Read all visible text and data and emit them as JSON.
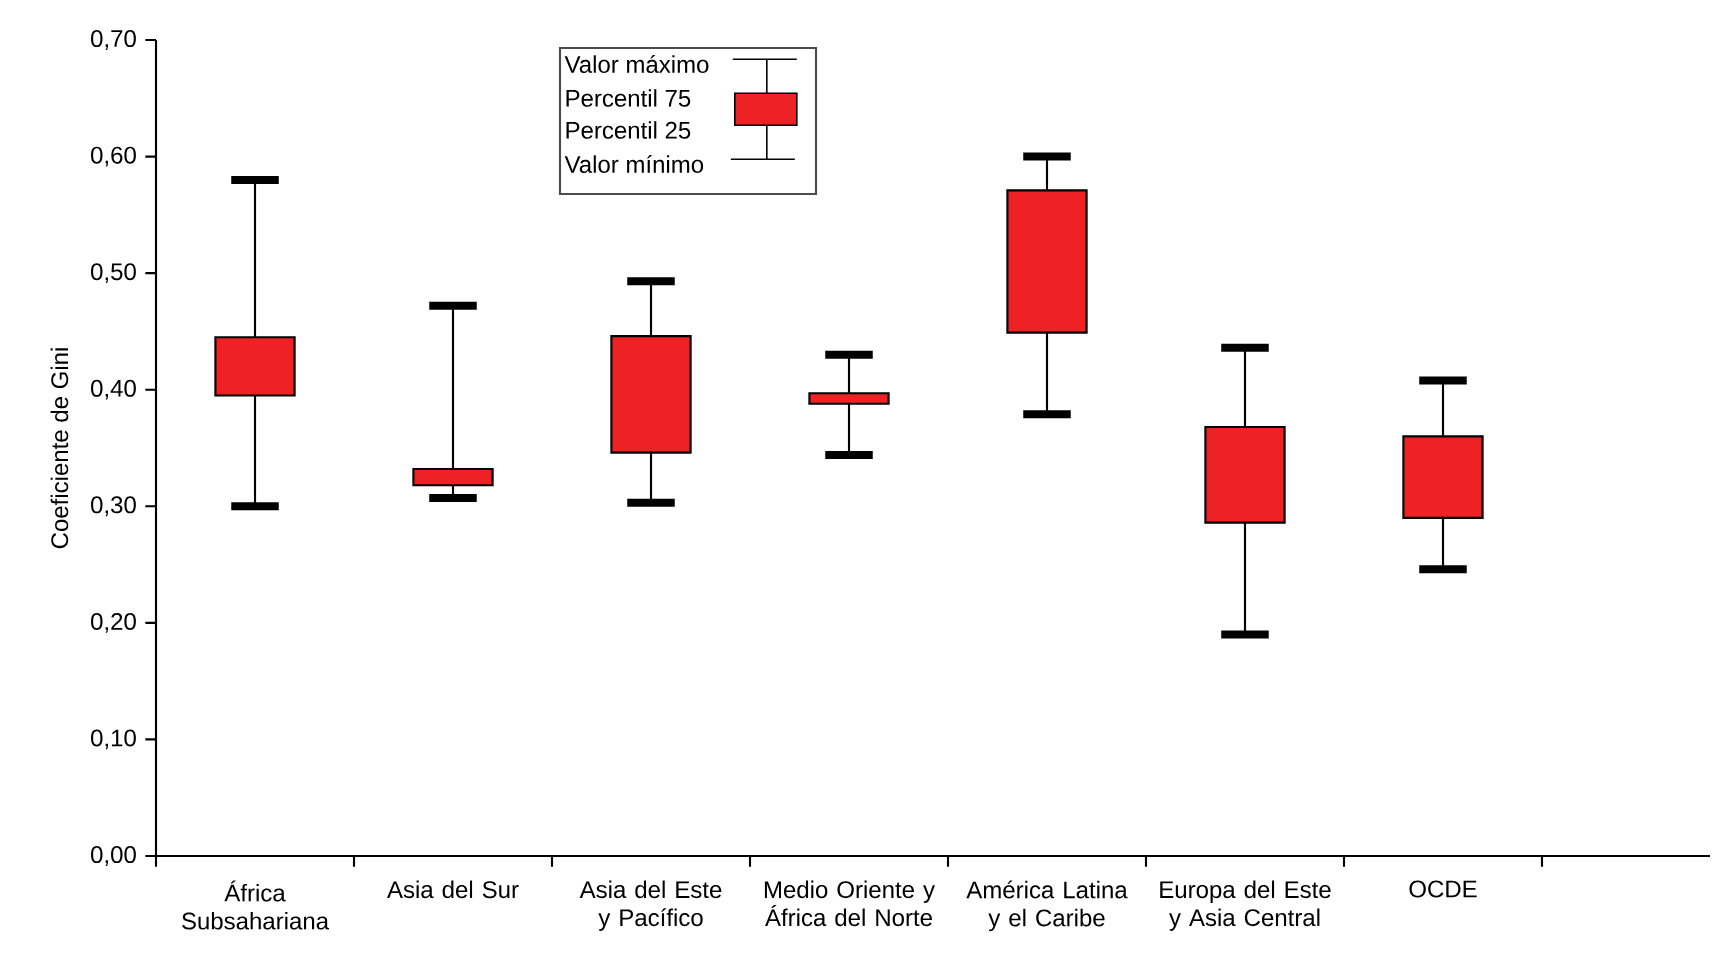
{
  "chart_data": {
    "type": "box",
    "ylabel": "Coeficiente de Gini",
    "categories": [
      "África Subsahariana",
      "Asia del Sur",
      "Asia del Este y Pacífico",
      "Medio Oriente y África del Norte",
      "América Latina y el Caribe",
      "Europa del Este y Asia Central",
      "OCDE"
    ],
    "ylim": [
      0,
      0.7
    ],
    "yticks": [
      {
        "value": 0,
        "label": "0,00"
      },
      {
        "value": 0.1,
        "label": "0,10"
      },
      {
        "value": 0.2,
        "label": "0,20"
      },
      {
        "value": 0.3,
        "label": "0,30"
      },
      {
        "value": 0.4,
        "label": "0,40"
      },
      {
        "value": 0.5,
        "label": "0,50"
      },
      {
        "value": 0.6,
        "label": "0,60"
      },
      {
        "value": 0.7,
        "label": "0,70"
      }
    ],
    "annotations": [
      "Valor máximo",
      "Percentil 75",
      "Percentil 25",
      "Valor mínimo"
    ],
    "series": [
      {
        "color": "#ee2224",
        "boxes": [
          {
            "low": 0.3,
            "q1": 0.395,
            "q3": 0.445,
            "high": 0.58
          },
          {
            "low": 0.307,
            "q1": 0.318,
            "q3": 0.332,
            "high": 0.472
          },
          {
            "low": 0.303,
            "q1": 0.346,
            "q3": 0.446,
            "high": 0.493
          },
          {
            "low": 0.344,
            "q1": 0.388,
            "q3": 0.397,
            "high": 0.43
          },
          {
            "low": 0.379,
            "q1": 0.449,
            "q3": 0.571,
            "high": 0.6
          },
          {
            "low": 0.19,
            "q1": 0.286,
            "q3": 0.368,
            "high": 0.436
          },
          {
            "low": 0.246,
            "q1": 0.29,
            "q3": 0.36,
            "high": 0.408
          }
        ]
      }
    ]
  }
}
